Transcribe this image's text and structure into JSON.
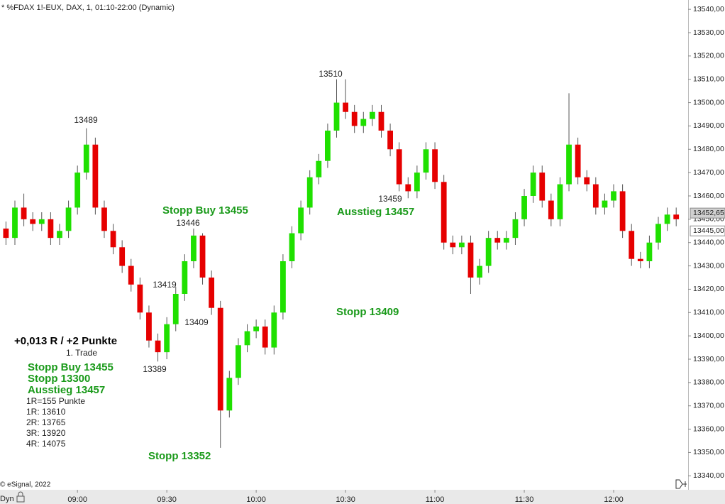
{
  "chart_data": {
    "type": "candlestick",
    "title": "* %FDAX 1!-EUX, DAX, 1, 01:10-22:00 (Dynamic)",
    "x": [
      "08:36",
      "08:39",
      "08:42",
      "08:45",
      "08:48",
      "08:51",
      "08:54",
      "08:57",
      "09:00",
      "09:03",
      "09:06",
      "09:09",
      "09:12",
      "09:15",
      "09:18",
      "09:21",
      "09:24",
      "09:27",
      "09:30",
      "09:33",
      "09:36",
      "09:39",
      "09:42",
      "09:45",
      "09:48",
      "09:51",
      "09:54",
      "09:57",
      "10:00",
      "10:03",
      "10:06",
      "10:09",
      "10:12",
      "10:15",
      "10:18",
      "10:21",
      "10:24",
      "10:27",
      "10:30",
      "10:33",
      "10:36",
      "10:39",
      "10:42",
      "10:45",
      "10:48",
      "10:51",
      "10:54",
      "10:57",
      "11:00",
      "11:03",
      "11:06",
      "11:09",
      "11:12",
      "11:15",
      "11:18",
      "11:21",
      "11:24",
      "11:27",
      "11:30",
      "11:33",
      "11:36",
      "11:39",
      "11:42",
      "11:45",
      "11:48",
      "11:51",
      "11:54",
      "11:57",
      "12:00",
      "12:03",
      "12:06",
      "12:09",
      "12:12",
      "12:15",
      "12:18",
      "12:21"
    ],
    "open": [
      13446,
      13442,
      13455,
      13450,
      13448,
      13450,
      13442,
      13445,
      13455,
      13470,
      13482,
      13455,
      13445,
      13438,
      13430,
      13422,
      13410,
      13398,
      13393,
      13405,
      13418,
      13432,
      13443,
      13425,
      13412,
      13368,
      13382,
      13396,
      13402,
      13404,
      13395,
      13410,
      13432,
      13444,
      13455,
      13468,
      13475,
      13488,
      13500,
      13496,
      13490,
      13493,
      13496,
      13488,
      13480,
      13465,
      13462,
      13470,
      13480,
      13466,
      13440,
      13438,
      13440,
      13425,
      13430,
      13442,
      13440,
      13442,
      13450,
      13460,
      13470,
      13458,
      13450,
      13465,
      13482,
      13468,
      13465,
      13455,
      13458,
      13462,
      13445,
      13433,
      13432,
      13440,
      13448,
      13452
    ],
    "high": [
      13449,
      13458,
      13461,
      13453,
      13453,
      13453,
      13448,
      13458,
      13473,
      13489,
      13485,
      13458,
      13448,
      13441,
      13433,
      13425,
      13413,
      13401,
      13408,
      13421,
      13435,
      13446,
      13444,
      13428,
      13415,
      13385,
      13399,
      13405,
      13407,
      13407,
      13413,
      13435,
      13447,
      13458,
      13471,
      13478,
      13491,
      13510,
      13510,
      13499,
      13496,
      13499,
      13499,
      13491,
      13483,
      13468,
      13473,
      13483,
      13483,
      13469,
      13443,
      13443,
      13443,
      13433,
      13445,
      13445,
      13445,
      13453,
      13463,
      13473,
      13473,
      13461,
      13468,
      13504,
      13485,
      13471,
      13468,
      13461,
      13465,
      13465,
      13448,
      13436,
      13443,
      13451,
      13455,
      13455
    ],
    "low": [
      13439,
      13439,
      13447,
      13445,
      13445,
      13439,
      13439,
      13442,
      13452,
      13467,
      13452,
      13442,
      13435,
      13427,
      13419,
      13407,
      13395,
      13389,
      13390,
      13402,
      13415,
      13429,
      13422,
      13409,
      13352,
      13365,
      13379,
      13393,
      13399,
      13392,
      13392,
      13407,
      13429,
      13441,
      13452,
      13465,
      13472,
      13485,
      13493,
      13487,
      13487,
      13490,
      13485,
      13477,
      13462,
      13459,
      13459,
      13467,
      13463,
      13437,
      13435,
      13435,
      13418,
      13422,
      13427,
      13437,
      13437,
      13439,
      13447,
      13457,
      13455,
      13447,
      13447,
      13462,
      13465,
      13462,
      13452,
      13452,
      13455,
      13442,
      13430,
      13429,
      13429,
      13437,
      13445,
      13447
    ],
    "close": [
      13442,
      13455,
      13450,
      13448,
      13450,
      13442,
      13445,
      13455,
      13470,
      13482,
      13455,
      13445,
      13438,
      13430,
      13422,
      13410,
      13398,
      13393,
      13405,
      13418,
      13432,
      13443,
      13425,
      13412,
      13368,
      13382,
      13396,
      13402,
      13404,
      13395,
      13410,
      13432,
      13444,
      13455,
      13468,
      13475,
      13488,
      13500,
      13496,
      13490,
      13493,
      13496,
      13488,
      13480,
      13465,
      13462,
      13470,
      13480,
      13466,
      13440,
      13438,
      13440,
      13425,
      13430,
      13442,
      13440,
      13442,
      13450,
      13460,
      13470,
      13458,
      13450,
      13465,
      13482,
      13468,
      13465,
      13455,
      13458,
      13462,
      13445,
      13433,
      13432,
      13440,
      13448,
      13452,
      13450
    ],
    "up_color": "#1fe000",
    "down_color": "#e60000",
    "xlim": [
      "08:34",
      "12:25"
    ],
    "xticks": [
      "09:00",
      "09:30",
      "10:00",
      "10:30",
      "11:00",
      "11:30",
      "12:00"
    ],
    "ylim": [
      13334,
      13544
    ],
    "yticks": [
      {
        "value": 13340,
        "label": "13340,00"
      },
      {
        "value": 13350,
        "label": "13350,00"
      },
      {
        "value": 13360,
        "label": "13360,00"
      },
      {
        "value": 13370,
        "label": "13370,00"
      },
      {
        "value": 13380,
        "label": "13380,00"
      },
      {
        "value": 13390,
        "label": "13390,00"
      },
      {
        "value": 13400,
        "label": "13400,00"
      },
      {
        "value": 13410,
        "label": "13410,00"
      },
      {
        "value": 13420,
        "label": "13420,00"
      },
      {
        "value": 13430,
        "label": "13430,00"
      },
      {
        "value": 13440,
        "label": "13440,00"
      },
      {
        "value": 13450,
        "label": "13450,00"
      },
      {
        "value": 13460,
        "label": "13460,00"
      },
      {
        "value": 13470,
        "label": "13470,00"
      },
      {
        "value": 13480,
        "label": "13480,00"
      },
      {
        "value": 13490,
        "label": "13490,00"
      },
      {
        "value": 13500,
        "label": "13500,00"
      },
      {
        "value": 13510,
        "label": "13510,00"
      },
      {
        "value": 13520,
        "label": "13520,00"
      },
      {
        "value": 13530,
        "label": "13530,00"
      },
      {
        "value": 13540,
        "label": "13540,00"
      }
    ],
    "price_markers": [
      {
        "value": 13452.65,
        "label": "13452,65"
      },
      {
        "value": 13445,
        "label": "13445,00"
      }
    ],
    "point_labels": [
      "13489",
      "13446",
      "13419",
      "13409",
      "13389",
      "13510",
      "13459"
    ],
    "green_annotations": [
      "Stopp Buy 13455",
      "Ausstieg 13457",
      "Stopp 13409",
      "Stopp 13352"
    ],
    "trade_box": {
      "result": "+0,013 R / +2 Punkte",
      "trade": "1. Trade",
      "orders": [
        "Stopp Buy 13455",
        "Stopp 13300",
        "Ausstieg 13457"
      ],
      "targets": [
        "1R=155 Punkte",
        "1R: 13610",
        "2R: 13765",
        "3R: 13920",
        "4R: 14075"
      ]
    },
    "copyright": "© eSignal, 2022",
    "mode": "Dyn"
  }
}
